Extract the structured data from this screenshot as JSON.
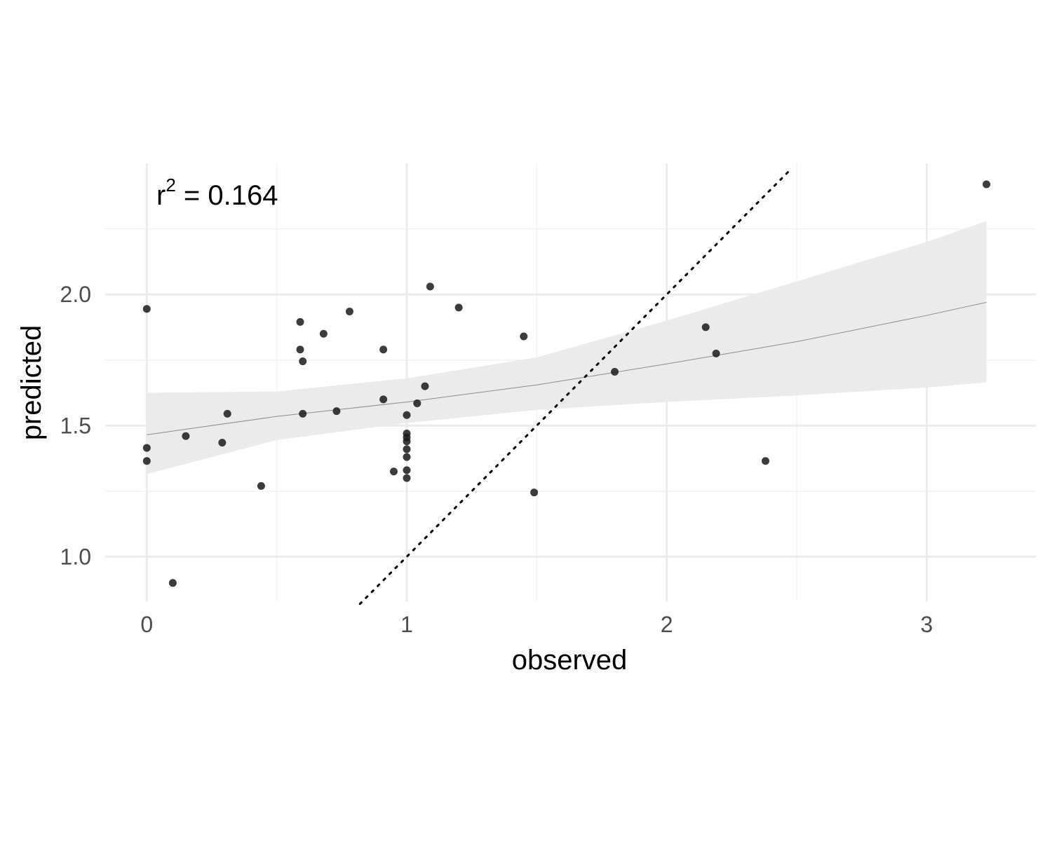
{
  "chart_data": {
    "type": "scatter",
    "xlabel": "observed",
    "ylabel": "predicted",
    "xlim": [
      -0.16,
      3.42
    ],
    "ylim": [
      0.83,
      2.5
    ],
    "x_ticks": [
      {
        "value": 0,
        "label": "0"
      },
      {
        "value": 1,
        "label": "1"
      },
      {
        "value": 2,
        "label": "2"
      },
      {
        "value": 3,
        "label": "3"
      }
    ],
    "y_ticks": [
      {
        "value": 1.0,
        "label": "1.0"
      },
      {
        "value": 1.5,
        "label": "1.5"
      },
      {
        "value": 2.0,
        "label": "2.0"
      }
    ],
    "grid": true,
    "annotation": {
      "base": "r",
      "sup": "2",
      "rest": " = 0.164"
    },
    "points": [
      {
        "x": 0.0,
        "y": 1.945
      },
      {
        "x": 0.0,
        "y": 1.415
      },
      {
        "x": 0.0,
        "y": 1.365
      },
      {
        "x": 0.1,
        "y": 0.9
      },
      {
        "x": 0.15,
        "y": 1.46
      },
      {
        "x": 0.29,
        "y": 1.435
      },
      {
        "x": 0.31,
        "y": 1.545
      },
      {
        "x": 0.44,
        "y": 1.27
      },
      {
        "x": 0.59,
        "y": 1.895
      },
      {
        "x": 0.59,
        "y": 1.79
      },
      {
        "x": 0.6,
        "y": 1.745
      },
      {
        "x": 0.6,
        "y": 1.545
      },
      {
        "x": 0.68,
        "y": 1.85
      },
      {
        "x": 0.73,
        "y": 1.555
      },
      {
        "x": 0.78,
        "y": 1.935
      },
      {
        "x": 0.91,
        "y": 1.79
      },
      {
        "x": 0.91,
        "y": 1.6
      },
      {
        "x": 0.95,
        "y": 1.325
      },
      {
        "x": 1.0,
        "y": 1.54
      },
      {
        "x": 1.0,
        "y": 1.47
      },
      {
        "x": 1.0,
        "y": 1.455
      },
      {
        "x": 1.0,
        "y": 1.44
      },
      {
        "x": 1.0,
        "y": 1.41
      },
      {
        "x": 1.0,
        "y": 1.38
      },
      {
        "x": 1.0,
        "y": 1.33
      },
      {
        "x": 1.0,
        "y": 1.3
      },
      {
        "x": 1.04,
        "y": 1.585
      },
      {
        "x": 1.07,
        "y": 1.65
      },
      {
        "x": 1.09,
        "y": 2.03
      },
      {
        "x": 1.2,
        "y": 1.95
      },
      {
        "x": 1.45,
        "y": 1.84
      },
      {
        "x": 1.49,
        "y": 1.245
      },
      {
        "x": 1.8,
        "y": 1.705
      },
      {
        "x": 2.15,
        "y": 1.875
      },
      {
        "x": 2.19,
        "y": 1.775
      },
      {
        "x": 2.38,
        "y": 1.365
      },
      {
        "x": 3.23,
        "y": 2.42
      }
    ],
    "fit_line": {
      "x": [
        0.0,
        0.5,
        1.0,
        1.5,
        2.0,
        2.5,
        3.0,
        3.23
      ],
      "y": [
        1.465,
        1.535,
        1.59,
        1.655,
        1.735,
        1.82,
        1.92,
        1.97
      ]
    },
    "ci_upper": [
      1.625,
      1.63,
      1.68,
      1.76,
      1.9,
      2.05,
      2.2,
      2.28
    ],
    "ci_lower": [
      1.315,
      1.445,
      1.51,
      1.56,
      1.59,
      1.615,
      1.645,
      1.665
    ],
    "identity_line": {
      "from": [
        0.82,
        0.82
      ],
      "to": [
        2.47,
        2.47
      ]
    },
    "colors": {
      "point": "#1a1a1a",
      "ribbon": "#ebebeb",
      "fit": "#8c8c8c",
      "grid_major": "#ebebeb",
      "grid_minor": "#f2f2f2"
    }
  }
}
